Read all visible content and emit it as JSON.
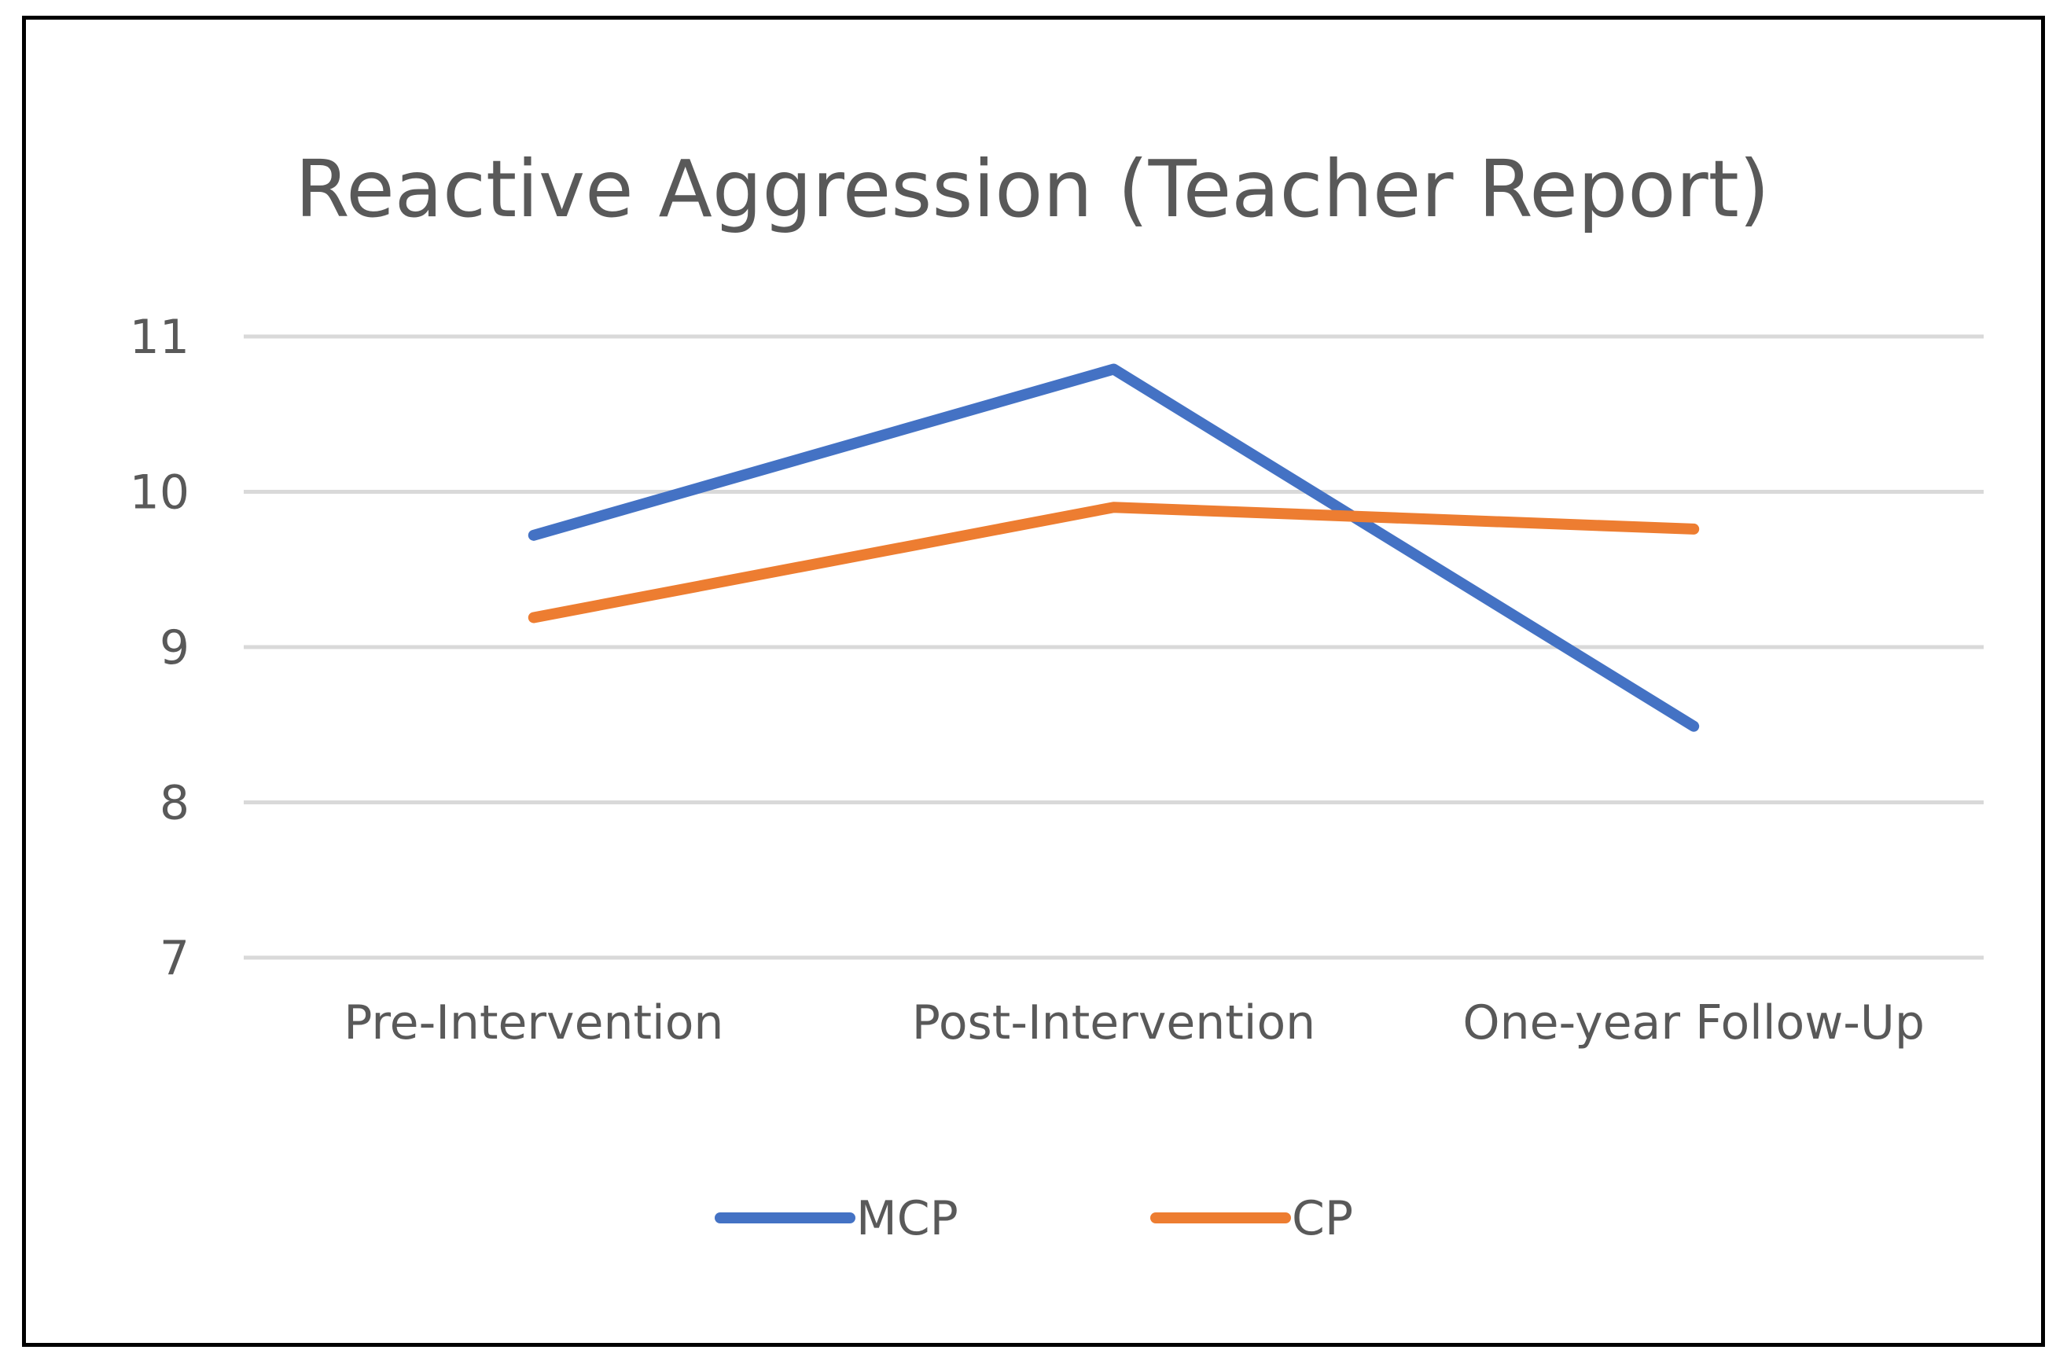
{
  "chart_data": {
    "type": "line",
    "title": "Reactive Aggression (Teacher Report)",
    "xlabel": "",
    "ylabel": "",
    "categories": [
      "Pre-Intervention",
      "Post-Intervention",
      "One-year Follow-Up"
    ],
    "ylim": [
      7,
      11
    ],
    "yticks": [
      7,
      8,
      9,
      10,
      11
    ],
    "grid": true,
    "legend_position": "bottom",
    "series": [
      {
        "name": "MCP",
        "color": "#4472C4",
        "values": [
          9.72,
          10.79,
          8.49
        ]
      },
      {
        "name": "CP",
        "color": "#ED7D31",
        "values": [
          9.19,
          9.9,
          9.76
        ]
      }
    ]
  }
}
